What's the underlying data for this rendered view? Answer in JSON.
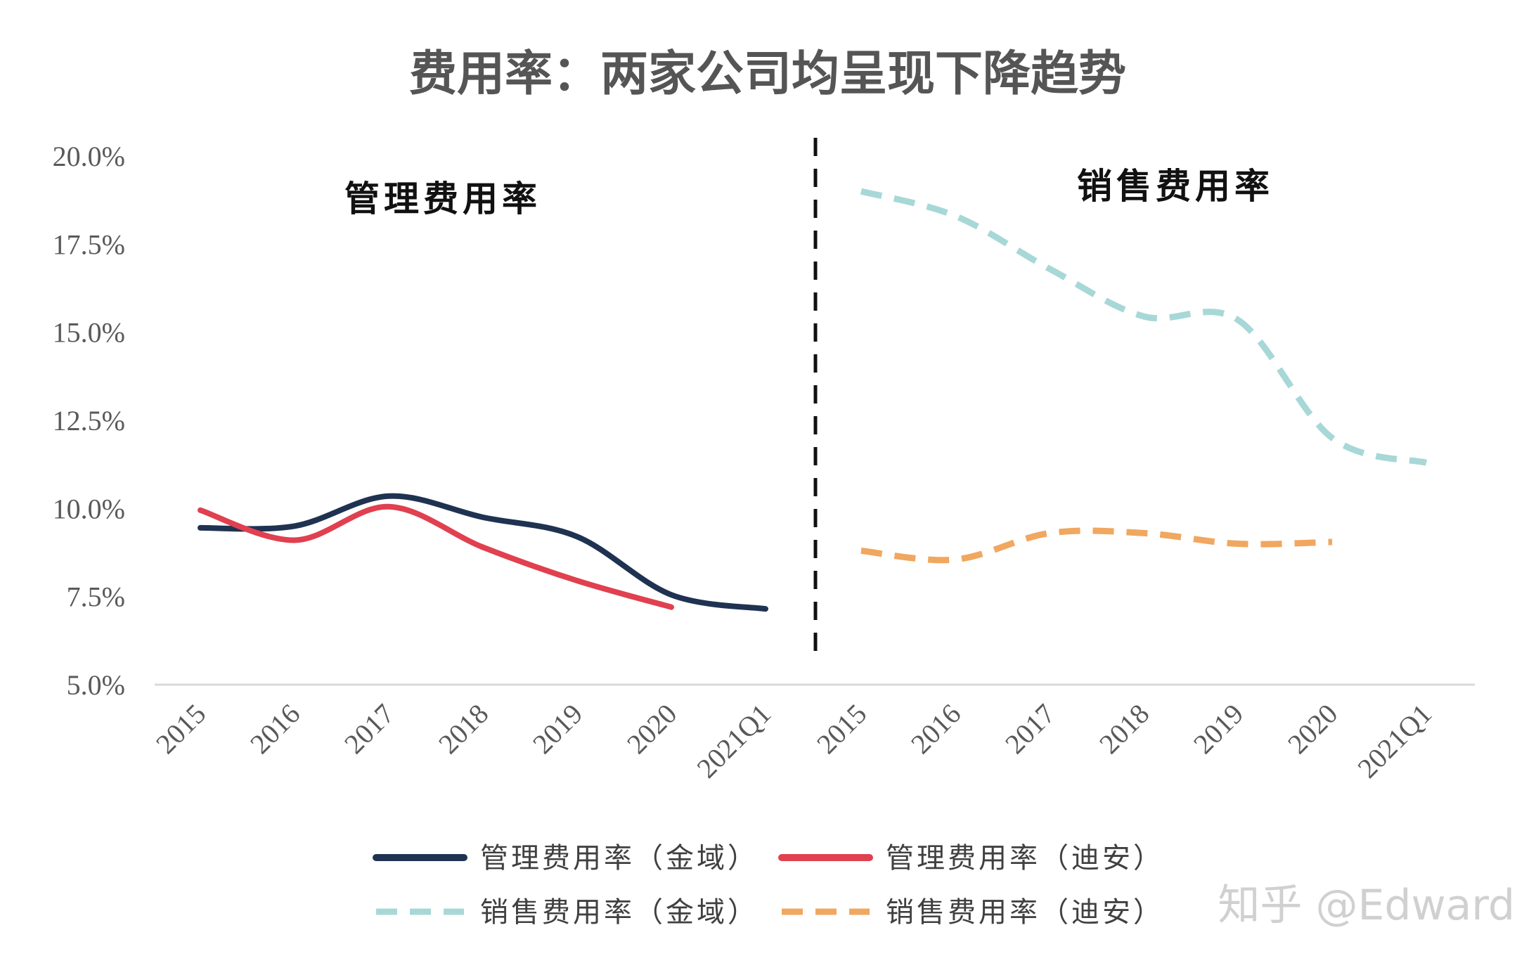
{
  "chart_data": {
    "type": "line",
    "title": "费用率：两家公司均呈现下降趋势",
    "ylim": [
      5.0,
      20.0
    ],
    "y_ticks": [
      "20.0%",
      "17.5%",
      "15.0%",
      "12.5%",
      "10.0%",
      "7.5%",
      "5.0%"
    ],
    "y_tick_values": [
      20.0,
      17.5,
      15.0,
      12.5,
      10.0,
      7.5,
      5.0
    ],
    "grid": false,
    "legend_position": "bottom",
    "panels": [
      {
        "label": "管理费用率",
        "categories": [
          "2015",
          "2016",
          "2017",
          "2018",
          "2019",
          "2020",
          "2021Q1"
        ],
        "series": [
          {
            "name": "管理费用率（金域）",
            "color": "#1f3251",
            "style": "solid",
            "values": [
              9.45,
              9.5,
              10.35,
              9.75,
              9.2,
              7.55,
              7.15
            ]
          },
          {
            "name": "管理费用率（迪安）",
            "color": "#e0404f",
            "style": "solid",
            "values": [
              9.95,
              9.1,
              10.05,
              8.9,
              7.95,
              7.2,
              null
            ]
          }
        ]
      },
      {
        "label": "销售费用率",
        "categories": [
          "2015",
          "2016",
          "2017",
          "2018",
          "2019",
          "2020",
          "2021Q1"
        ],
        "series": [
          {
            "name": "销售费用率（金域）",
            "color": "#a7d8d7",
            "style": "dashed",
            "values": [
              19.0,
              18.3,
              16.8,
              15.45,
              15.35,
              12.0,
              11.3
            ]
          },
          {
            "name": "销售费用率（迪安）",
            "color": "#f0a760",
            "style": "dashed",
            "values": [
              8.8,
              8.55,
              9.3,
              9.3,
              9.0,
              9.05,
              null
            ]
          }
        ]
      }
    ],
    "legend": [
      "管理费用率（金域）",
      "管理费用率（迪安）",
      "销售费用率（金域）",
      "销售费用率（迪安）"
    ]
  },
  "watermark": "知乎 @Edward"
}
